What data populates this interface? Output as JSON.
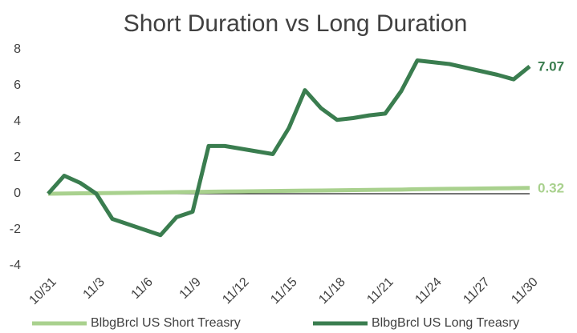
{
  "chart_data": {
    "type": "line",
    "title": "Short Duration vs Long Duration",
    "categories": [
      "10/31",
      null,
      null,
      "11/3",
      null,
      null,
      "11/6",
      null,
      null,
      "11/9",
      null,
      null,
      "11/12",
      null,
      null,
      "11/15",
      null,
      null,
      "11/18",
      null,
      null,
      "11/21",
      null,
      null,
      "11/24",
      null,
      null,
      "11/27",
      null,
      null,
      "11/30"
    ],
    "series": [
      {
        "name": "BlbgBrcl US Short Treasry",
        "color": "#a9d18e",
        "values": [
          0,
          0.01,
          0.02,
          0.03,
          0.04,
          0.05,
          0.06,
          0.07,
          0.09,
          0.1,
          0.11,
          0.12,
          0.13,
          0.14,
          0.15,
          0.16,
          0.17,
          0.18,
          0.19,
          0.2,
          0.21,
          0.22,
          0.23,
          0.25,
          0.26,
          0.27,
          0.28,
          0.29,
          0.3,
          0.31,
          0.32
        ]
      },
      {
        "name": "BlbgBrcl US Long Treasry",
        "color": "#3a7d4f",
        "values": [
          0,
          1.0,
          0.6,
          0,
          -1.4,
          -1.7,
          -2.0,
          -2.3,
          -1.3,
          -1.0,
          2.65,
          2.65,
          2.5,
          2.35,
          2.2,
          3.65,
          5.75,
          4.75,
          4.1,
          4.2,
          4.35,
          4.45,
          5.7,
          7.4,
          7.3,
          7.2,
          7.0,
          6.8,
          6.6,
          6.35,
          7.07
        ]
      }
    ],
    "ylim": [
      -4,
      8
    ],
    "yticks": [
      -4,
      -2,
      0,
      2,
      4,
      6,
      8
    ],
    "grid": false,
    "legend": "bottom"
  }
}
